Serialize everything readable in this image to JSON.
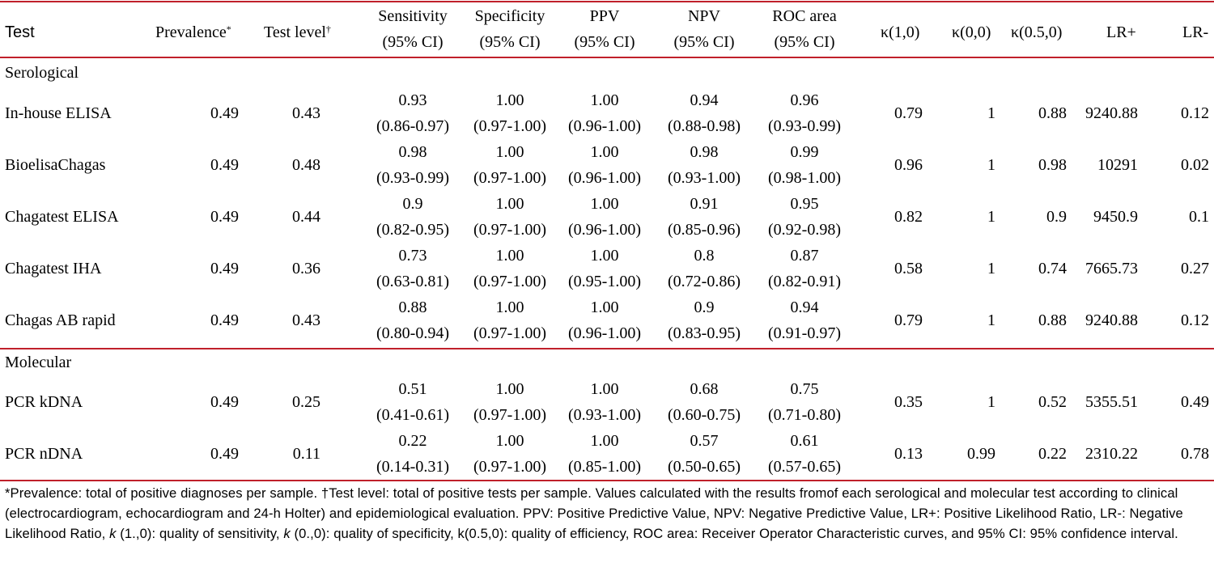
{
  "header": {
    "test": "Test",
    "prevalence": "Prevalence",
    "prevalence_mark": "*",
    "test_level": "Test level",
    "test_level_mark": "†",
    "sensitivity": [
      "Sensitivity",
      "(95% CI)"
    ],
    "specificity": [
      "Specificity",
      "(95% CI)"
    ],
    "ppv": [
      "PPV",
      "(95% CI)"
    ],
    "npv": [
      "NPV",
      "(95% CI)"
    ],
    "roc": [
      "ROC area",
      "(95% CI)"
    ],
    "k10": "κ(1,0)",
    "k00": "κ(0,0)",
    "k050": "κ(0.5,0)",
    "lrp": "LR+",
    "lrm": "LR-"
  },
  "sections": [
    {
      "label": "Serological",
      "rows": [
        {
          "test": "In-house ELISA",
          "prev": "0.49",
          "level": "0.43",
          "sens": [
            "0.93",
            "(0.86-0.97)"
          ],
          "spec": [
            "1.00",
            "(0.97-1.00)"
          ],
          "ppv": [
            "1.00",
            "(0.96-1.00)"
          ],
          "npv": [
            "0.94",
            "(0.88-0.98)"
          ],
          "roc": [
            "0.96",
            "(0.93-0.99)"
          ],
          "k10": "0.79",
          "k00": "1",
          "k050": "0.88",
          "lrp": "9240.88",
          "lrm": "0.12"
        },
        {
          "test": "BioelisaChagas",
          "prev": "0.49",
          "level": "0.48",
          "sens": [
            "0.98",
            "(0.93-0.99)"
          ],
          "spec": [
            "1.00",
            "(0.97-1.00)"
          ],
          "ppv": [
            "1.00",
            "(0.96-1.00)"
          ],
          "npv": [
            "0.98",
            "(0.93-1.00)"
          ],
          "roc": [
            "0.99",
            "(0.98-1.00)"
          ],
          "k10": "0.96",
          "k00": "1",
          "k050": "0.98",
          "lrp": "10291",
          "lrm": "0.02"
        },
        {
          "test": "Chagatest ELISA",
          "prev": "0.49",
          "level": "0.44",
          "sens": [
            "0.9",
            "(0.82-0.95)"
          ],
          "spec": [
            "1.00",
            "(0.97-1.00)"
          ],
          "ppv": [
            "1.00",
            "(0.96-1.00)"
          ],
          "npv": [
            "0.91",
            "(0.85-0.96)"
          ],
          "roc": [
            "0.95",
            "(0.92-0.98)"
          ],
          "k10": "0.82",
          "k00": "1",
          "k050": "0.9",
          "lrp": "9450.9",
          "lrm": "0.1"
        },
        {
          "test": "Chagatest IHA",
          "prev": "0.49",
          "level": "0.36",
          "sens": [
            "0.73",
            "(0.63-0.81)"
          ],
          "spec": [
            "1.00",
            "(0.97-1.00)"
          ],
          "ppv": [
            "1.00",
            "(0.95-1.00)"
          ],
          "npv": [
            "0.8",
            "(0.72-0.86)"
          ],
          "roc": [
            "0.87",
            "(0.82-0.91)"
          ],
          "k10": "0.58",
          "k00": "1",
          "k050": "0.74",
          "lrp": "7665.73",
          "lrm": "0.27"
        },
        {
          "test": "Chagas AB rapid",
          "prev": "0.49",
          "level": "0.43",
          "sens": [
            "0.88",
            "(0.80-0.94)"
          ],
          "spec": [
            "1.00",
            "(0.97-1.00)"
          ],
          "ppv": [
            "1.00",
            "(0.96-1.00)"
          ],
          "npv": [
            "0.9",
            "(0.83-0.95)"
          ],
          "roc": [
            "0.94",
            "(0.91-0.97)"
          ],
          "k10": "0.79",
          "k00": "1",
          "k050": "0.88",
          "lrp": "9240.88",
          "lrm": "0.12"
        }
      ]
    },
    {
      "label": "Molecular",
      "rows": [
        {
          "test": "PCR kDNA",
          "prev": "0.49",
          "level": "0.25",
          "sens": [
            "0.51",
            "(0.41-0.61)"
          ],
          "spec": [
            "1.00",
            "(0.97-1.00)"
          ],
          "ppv": [
            "1.00",
            "(0.93-1.00)"
          ],
          "npv": [
            "0.68",
            "(0.60-0.75)"
          ],
          "roc": [
            "0.75",
            "(0.71-0.80)"
          ],
          "k10": "0.35",
          "k00": "1",
          "k050": "0.52",
          "lrp": "5355.51",
          "lrm": "0.49"
        },
        {
          "test": "PCR nDNA",
          "prev": "0.49",
          "level": "0.11",
          "sens": [
            "0.22",
            "(0.14-0.31)"
          ],
          "spec": [
            "1.00",
            "(0.97-1.00)"
          ],
          "ppv": [
            "1.00",
            "(0.85-1.00)"
          ],
          "npv": [
            "0.57",
            "(0.50-0.65)"
          ],
          "roc": [
            "0.61",
            "(0.57-0.65)"
          ],
          "k10": "0.13",
          "k00": "0.99",
          "k050": "0.22",
          "lrp": "2310.22",
          "lrm": "0.78"
        }
      ]
    }
  ],
  "footer": {
    "p1": "*Prevalence: total of positive diagnoses per sample. †Test level: total of positive tests per sample. Values calculated with the results fromof each serological and molecular test according to clinical (electrocardiogram, echocardiogram and 24-h Holter) and epidemiological evaluation. PPV: Positive Predictive Value, NPV: Negative Predictive Value, LR+: Positive Likelihood Ratio, LR-: Negative Likelihood Ratio, ",
    "k": "k",
    "p2": " (1.,0): quality of sensitivity, ",
    "p3": " (0.,0): quality of specificity, k(0.5,0): quality of efficiency, ROC area: Receiver Operator Characteristic curves, and 95% CI: 95% confidence interval."
  },
  "colors": {
    "rule": "#c0202a",
    "text": "#000000"
  }
}
